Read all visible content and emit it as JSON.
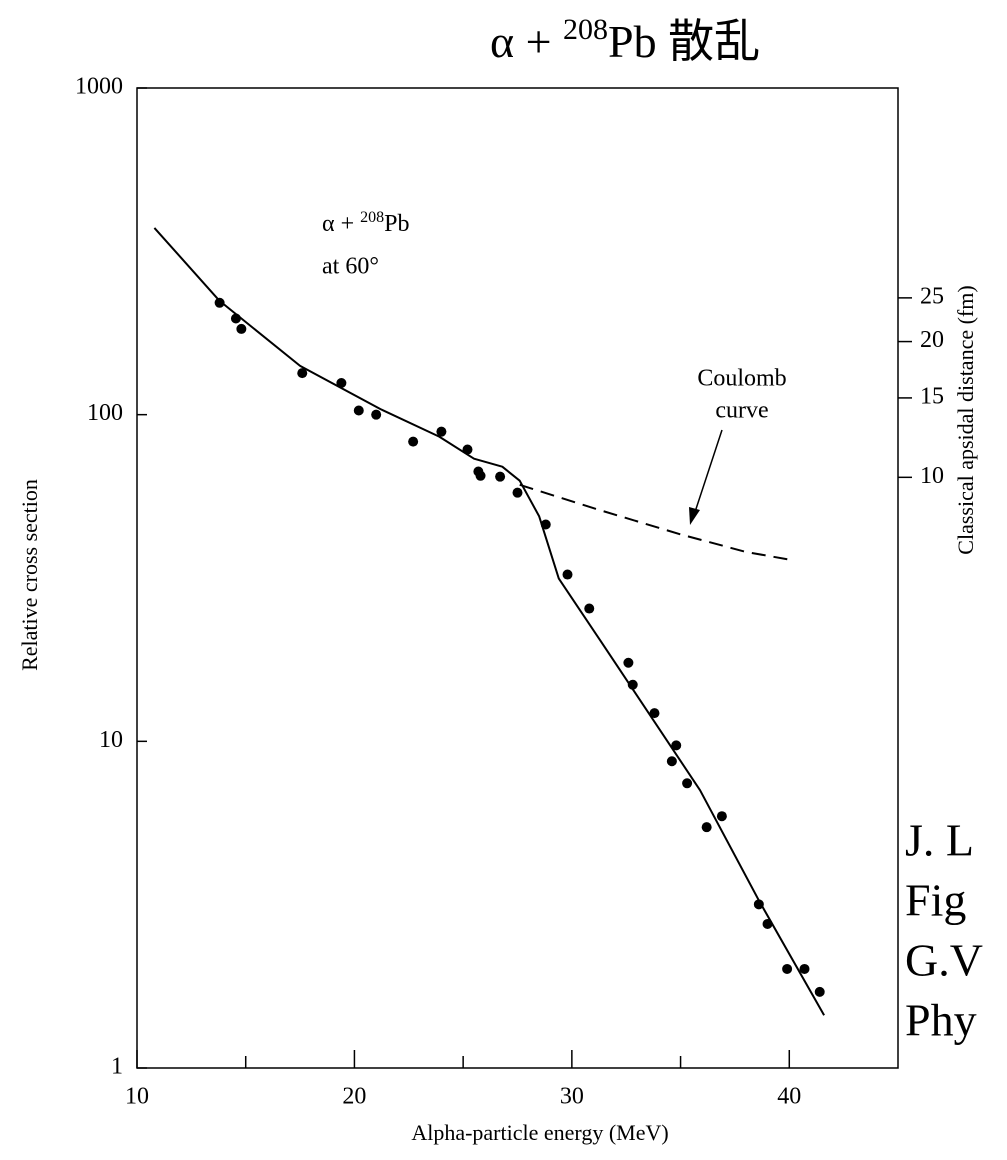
{
  "chart_data": {
    "type": "scatter",
    "title": {
      "prefix": "α + ",
      "sup": "208",
      "suffix": "Pb 散乱"
    },
    "x_label": "Alpha-particle energy (MeV)",
    "y_label": "Relative cross section",
    "y2_label": "Classical apsidal distance (fm)",
    "xlim": [
      10,
      45
    ],
    "xticks": [
      10,
      20,
      30,
      40
    ],
    "xminorticks": [
      15,
      25,
      35
    ],
    "ylim": [
      1,
      1000
    ],
    "yticks": [
      1,
      10,
      100,
      1000
    ],
    "ylog": true,
    "y2lim": [
      0.49,
      73
    ],
    "y2ticks": [
      25,
      20,
      15,
      10
    ],
    "y2log": true,
    "annotations": {
      "reaction": {
        "prefix": "α + ",
        "sup": "208",
        "suffix": "Pb"
      },
      "angle": "at 60°",
      "coulomb": [
        "Coulomb",
        "curve"
      ]
    },
    "reference": [
      "J. L",
      "Fig",
      "G.V",
      "Phy"
    ],
    "series": [
      {
        "type": "scatter",
        "color": "#000000",
        "x": [
          13.8,
          14.55,
          14.8,
          17.6,
          19.4,
          20.2,
          21.0,
          22.7,
          24.0,
          25.2,
          25.7,
          25.8,
          26.7,
          27.5,
          28.8,
          29.8,
          30.8,
          32.6,
          32.8,
          33.8,
          34.8,
          34.6,
          35.3,
          36.2,
          36.9,
          38.6,
          39.0,
          39.9,
          40.7,
          41.4
        ],
        "values": [
          220,
          197,
          183,
          134,
          125,
          103,
          100,
          82.7,
          88.7,
          78.2,
          67,
          65,
          64.6,
          57.7,
          46.1,
          32.4,
          25.5,
          17.4,
          14.9,
          12.2,
          9.72,
          8.69,
          7.44,
          5.46,
          5.9,
          3.17,
          2.76,
          2.01,
          2.01,
          1.71
        ]
      },
      {
        "type": "line",
        "color": "#000000",
        "x": [
          10.8,
          13.8,
          17.5,
          21.2,
          23.9,
          25.5,
          26.8,
          27.6,
          28.5,
          29.4,
          31.3,
          35.9,
          38.6,
          41.6
        ],
        "values": [
          373,
          223,
          141,
          104,
          85.7,
          73.3,
          69.3,
          62.8,
          48.8,
          31.5,
          20.4,
          7.08,
          3.26,
          1.45
        ]
      },
      {
        "type": "line",
        "dashed": true,
        "color": "#000000",
        "x": [
          27.6,
          31.3,
          35,
          38,
          40
        ],
        "values": [
          61,
          51,
          43,
          38,
          36
        ]
      }
    ]
  }
}
